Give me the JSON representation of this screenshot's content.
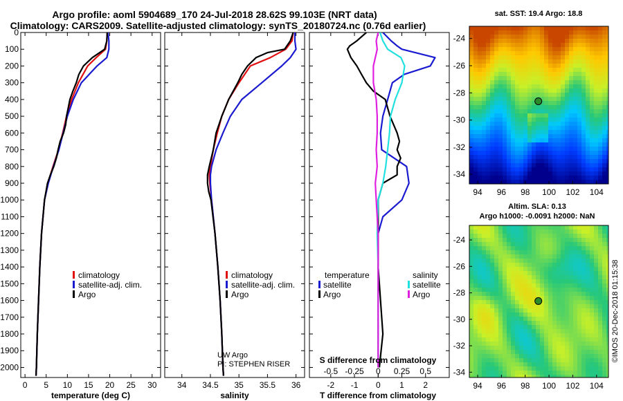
{
  "title": {
    "line1": "Argo profile: aoml 5904689_170 24-Jul-2018 28.62S 99.103E (NRT data)",
    "line2": "Climatology: CARS2009. Satellite-adjusted climatology: synTS_20180724.nc (0.76d earlier)"
  },
  "colors": {
    "climatology": "#e01010",
    "satellite": "#1a1ad0",
    "argo": "#000000",
    "argo_salinity_diff": "#e020e0",
    "satellite_salinity_diff": "#20e0e0",
    "marker": "#2a8a2a"
  },
  "depth_ticks": [
    "0",
    "100",
    "200",
    "300",
    "400",
    "500",
    "600",
    "700",
    "800",
    "900",
    "1000",
    "1100",
    "1200",
    "1300",
    "1400",
    "1500",
    "1600",
    "1700",
    "1800",
    "1900",
    "2000"
  ],
  "chart_data": [
    {
      "type": "line",
      "id": "temperature",
      "xlabel": "temperature (deg C)",
      "ylabel": "",
      "xlim": [
        -1,
        32
      ],
      "ylim": [
        2060,
        0
      ],
      "xticks": [
        "0",
        "5",
        "10",
        "15",
        "20",
        "25",
        "30"
      ],
      "xtick_values": [
        0,
        5,
        10,
        15,
        20,
        25,
        30
      ],
      "legend": [
        "climatology",
        "satellite-adj. clim.",
        "Argo"
      ],
      "series": [
        {
          "name": "climatology",
          "depth": [
            0,
            50,
            100,
            150,
            200,
            300,
            400,
            500,
            600,
            700,
            800,
            900,
            1000,
            1200,
            1400,
            1600,
            1800,
            2000,
            2050
          ],
          "values": [
            19.4,
            19.3,
            19.0,
            16.8,
            14.8,
            12.6,
            11.0,
            9.8,
            8.9,
            7.9,
            6.6,
            5.4,
            4.6,
            3.9,
            3.5,
            3.2,
            2.9,
            2.7,
            2.6
          ]
        },
        {
          "name": "satellite-adj. clim.",
          "depth": [
            0,
            50,
            100,
            150,
            200,
            300,
            400,
            500,
            600,
            700,
            800,
            900,
            1000,
            1200,
            1400,
            1600,
            1800,
            2000,
            2050
          ],
          "values": [
            19.6,
            19.8,
            19.8,
            19.3,
            17.0,
            13.3,
            11.4,
            10.0,
            9.0,
            8.0,
            6.7,
            5.5,
            4.6,
            3.9,
            3.5,
            3.2,
            2.9,
            2.7,
            2.6
          ]
        },
        {
          "name": "Argo",
          "depth": [
            0,
            50,
            100,
            150,
            200,
            250,
            300,
            350,
            400,
            450,
            500,
            550,
            600,
            650,
            700,
            750,
            800,
            850,
            900,
            1000,
            1200,
            1400,
            1600,
            1800,
            2000,
            2050
          ],
          "values": [
            19.4,
            19.3,
            18.8,
            15.9,
            13.8,
            12.7,
            12.1,
            11.3,
            10.6,
            10.2,
            9.8,
            9.6,
            9.1,
            8.3,
            7.8,
            7.4,
            6.8,
            6.0,
            5.3,
            4.6,
            3.9,
            3.5,
            3.2,
            2.9,
            2.7,
            2.6
          ]
        }
      ]
    },
    {
      "type": "line",
      "id": "salinity",
      "xlabel": "salinity",
      "ylabel": "",
      "xlim": [
        33.7,
        36.15
      ],
      "ylim": [
        2060,
        0
      ],
      "xticks": [
        "34",
        "34.5",
        "35",
        "35.5",
        "36"
      ],
      "xtick_values": [
        34,
        34.5,
        35,
        35.5,
        36
      ],
      "legend": [
        "climatology",
        "satellite-adj. clim.",
        "Argo"
      ],
      "series": [
        {
          "name": "climatology",
          "depth": [
            0,
            50,
            100,
            150,
            200,
            300,
            400,
            500,
            600,
            700,
            800,
            850,
            900,
            1000,
            1200,
            1400,
            1600,
            1800,
            2000,
            2050
          ],
          "values": [
            35.95,
            35.93,
            35.82,
            35.55,
            35.2,
            35.0,
            34.82,
            34.7,
            34.62,
            34.55,
            34.5,
            34.48,
            34.49,
            34.52,
            34.58,
            34.63,
            34.67,
            34.7,
            34.72,
            34.73
          ]
        },
        {
          "name": "satellite-adj. clim.",
          "depth": [
            0,
            50,
            100,
            150,
            200,
            300,
            400,
            500,
            600,
            700,
            800,
            850,
            900,
            1000,
            1200,
            1400,
            1600,
            1800,
            2000,
            2050
          ],
          "values": [
            35.98,
            35.98,
            36.0,
            35.9,
            35.75,
            35.4,
            35.05,
            34.85,
            34.72,
            34.6,
            34.52,
            34.5,
            34.5,
            34.52,
            34.58,
            34.63,
            34.67,
            34.7,
            34.72,
            34.73
          ]
        },
        {
          "name": "Argo",
          "depth": [
            0,
            50,
            100,
            120,
            150,
            200,
            250,
            300,
            350,
            400,
            450,
            500,
            600,
            700,
            800,
            850,
            900,
            950,
            1000,
            1200,
            1400,
            1600,
            1800,
            2000,
            2050
          ],
          "values": [
            35.95,
            35.9,
            35.8,
            35.5,
            35.3,
            35.15,
            35.05,
            34.98,
            34.9,
            34.82,
            34.76,
            34.7,
            34.6,
            34.55,
            34.48,
            34.45,
            34.45,
            34.47,
            34.51,
            34.58,
            34.63,
            34.67,
            34.7,
            34.72,
            34.73
          ]
        }
      ],
      "annotations": [
        "UW Argo",
        "PI: STEPHEN RISER"
      ]
    },
    {
      "type": "line",
      "id": "difference",
      "xlabel": "T difference from climatology",
      "ylabel": "",
      "xlim": [
        -2.9,
        3.0
      ],
      "ylim": [
        2060,
        0
      ],
      "xticks": [
        "-2",
        "-1",
        "0",
        "1",
        "2"
      ],
      "xtick_values": [
        -2,
        -1,
        0,
        1,
        2
      ],
      "secondary_xlabel": "S difference from climatology",
      "secondary_xticks": [
        "-0.5",
        "-0.25",
        "0",
        "0.25",
        "0.5"
      ],
      "legend_temperature": [
        "temperature",
        "satellite",
        "Argo"
      ],
      "legend_salinity": [
        "salinity",
        "satellite",
        "Argo"
      ],
      "series": [
        {
          "name": "temperature satellite",
          "depth": [
            0,
            50,
            80,
            100,
            150,
            200,
            250,
            300,
            400,
            500,
            600,
            700,
            800,
            900,
            1000,
            1100,
            1200,
            1400,
            1600,
            1800,
            2000
          ],
          "values": [
            0.2,
            0.55,
            0.8,
            1.0,
            2.4,
            2.2,
            1.1,
            0.6,
            0.4,
            0.2,
            0.1,
            0.15,
            1.2,
            1.3,
            1.0,
            0.2,
            0.0,
            0.0,
            0.0,
            0.0,
            0.0
          ]
        },
        {
          "name": "temperature Argo",
          "depth": [
            0,
            50,
            80,
            100,
            150,
            200,
            250,
            300,
            350,
            400,
            500,
            600,
            650,
            700,
            750,
            800,
            850,
            900,
            1000,
            1200,
            1400,
            1600,
            1800,
            2000
          ],
          "values": [
            -0.5,
            -0.9,
            -1.2,
            -1.3,
            -1.15,
            -0.9,
            -0.7,
            -0.5,
            -0.2,
            0.3,
            0.5,
            0.8,
            0.9,
            0.8,
            0.95,
            0.8,
            0.8,
            0.2,
            0.0,
            0.0,
            0.0,
            0.1,
            0.2,
            0.05
          ]
        },
        {
          "name": "salinity satellite",
          "depth": [
            0,
            50,
            100,
            150,
            200,
            300,
            400,
            500,
            600,
            700,
            800,
            900,
            1000,
            1200,
            1400,
            1600,
            1800,
            2000
          ],
          "values": [
            0.02,
            0.05,
            0.1,
            0.24,
            0.28,
            0.25,
            0.18,
            0.13,
            0.12,
            0.1,
            0.08,
            0.05,
            0.0,
            -0.01,
            0.0,
            0.0,
            0.0,
            0.0
          ]
        },
        {
          "name": "salinity Argo",
          "depth": [
            0,
            50,
            100,
            150,
            200,
            300,
            400,
            500,
            600,
            700,
            800,
            900,
            1000,
            1200,
            1400,
            1600,
            1800,
            2000
          ],
          "values": [
            0.0,
            -0.02,
            -0.01,
            -0.03,
            -0.05,
            -0.05,
            -0.02,
            -0.01,
            -0.01,
            -0.02,
            -0.01,
            -0.03,
            -0.02,
            0.0,
            0.0,
            0.0,
            0.0,
            0.0
          ]
        }
      ]
    }
  ],
  "legend_labels": {
    "climatology": "climatology",
    "satellite": "satellite-adj. clim.",
    "argo": "Argo",
    "temperature": "temperature",
    "salinity": "salinity",
    "sat_short": "satellite"
  },
  "annotation": {
    "uw": "UW Argo",
    "pi": "PI: STEPHEN RISER"
  },
  "map_top": {
    "title": "sat. SST: 19.4 Argo: 18.8",
    "lat_ticks": [
      "-24",
      "-26",
      "-28",
      "-30",
      "-32",
      "-34"
    ],
    "lat_values": [
      -24,
      -26,
      -28,
      -30,
      -32,
      -34
    ],
    "lon_ticks": [
      "94",
      "96",
      "98",
      "100",
      "102",
      "104"
    ],
    "lon_values": [
      94,
      96,
      98,
      100,
      102,
      104
    ],
    "marker_lon": 99.103,
    "marker_lat": -28.62
  },
  "map_bottom": {
    "title1": "Altim. SLA: 0.13",
    "title2": "Argo h1000: -0.0091 h2000: NaN",
    "lat_ticks": [
      "-24",
      "-26",
      "-28",
      "-30",
      "-32",
      "-34"
    ],
    "lat_values": [
      -24,
      -26,
      -28,
      -30,
      -32,
      -34
    ],
    "lon_ticks": [
      "94",
      "96",
      "98",
      "100",
      "102",
      "104"
    ],
    "lon_values": [
      94,
      96,
      98,
      100,
      102,
      104
    ],
    "marker_lon": 99.103,
    "marker_lat": -28.62
  },
  "credit": "©IMOS 20-Dec-2018 01:15:38"
}
